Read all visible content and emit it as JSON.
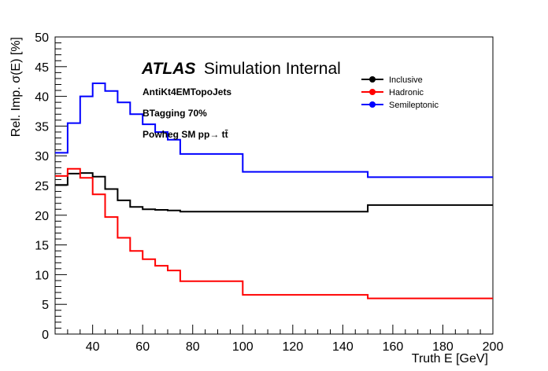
{
  "chart_data": {
    "type": "line",
    "style": "step",
    "xlabel": "Truth E [GeV]",
    "ylabel": "Rel. Imp. σ(E) [%]",
    "xlim": [
      25,
      200
    ],
    "ylim": [
      0,
      50
    ],
    "xticks": [
      40,
      60,
      80,
      100,
      120,
      140,
      160,
      180,
      200
    ],
    "yticks": [
      0,
      5,
      10,
      15,
      20,
      25,
      30,
      35,
      40,
      45,
      50
    ],
    "bin_edges": [
      25,
      30,
      35,
      40,
      45,
      50,
      55,
      60,
      65,
      70,
      75,
      100,
      150,
      200
    ],
    "series": [
      {
        "name": "Inclusive",
        "color": "#000000",
        "values": [
          25.1,
          27.0,
          27.1,
          26.5,
          24.4,
          22.5,
          21.4,
          21.0,
          20.9,
          20.8,
          20.6,
          20.6,
          21.7
        ]
      },
      {
        "name": "Hadronic",
        "color": "#ff0000",
        "values": [
          26.6,
          27.8,
          26.3,
          23.5,
          19.7,
          16.2,
          14.0,
          12.6,
          11.5,
          10.7,
          8.9,
          6.6,
          6.0
        ]
      },
      {
        "name": "Semileptonic",
        "color": "#0000ff",
        "values": [
          30.5,
          35.5,
          40.0,
          42.2,
          40.9,
          39.0,
          37.0,
          35.3,
          34.0,
          32.7,
          30.3,
          27.3,
          26.4
        ]
      }
    ],
    "legend_position": "top-right",
    "grid": false,
    "atlas_label": {
      "bold": "ATLAS",
      "rest": "Simulation Internal"
    },
    "annotations": [
      "AntiKt4EMTopoJets",
      "BTagging 70%",
      "Powheg SM pp→ tt̄"
    ]
  }
}
